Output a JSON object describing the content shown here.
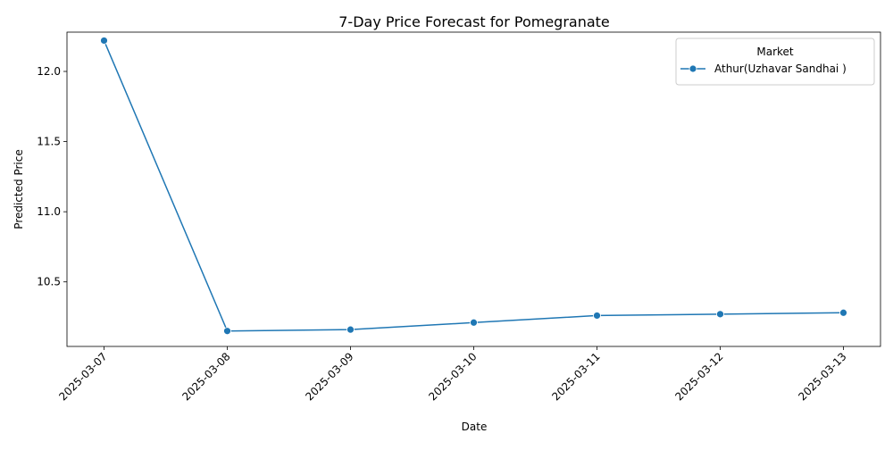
{
  "chart_data": {
    "type": "line",
    "title": "7-Day Price Forecast for Pomegranate",
    "xlabel": "Date",
    "ylabel": "Predicted Price",
    "x": [
      "2025-03-07",
      "2025-03-08",
      "2025-03-09",
      "2025-03-10",
      "2025-03-11",
      "2025-03-12",
      "2025-03-13"
    ],
    "yticks": [
      "10.5",
      "11.0",
      "11.5",
      "12.0"
    ],
    "ylim": [
      10.04,
      12.28
    ],
    "grid": false,
    "legend": {
      "title": "Market",
      "placement": "top-right"
    },
    "series": [
      {
        "name": "Athur(Uzhavar Sandhai )",
        "color": "#1f77b4",
        "marker": "circle",
        "values": [
          12.22,
          10.15,
          10.16,
          10.21,
          10.26,
          10.27,
          10.28
        ]
      }
    ]
  }
}
